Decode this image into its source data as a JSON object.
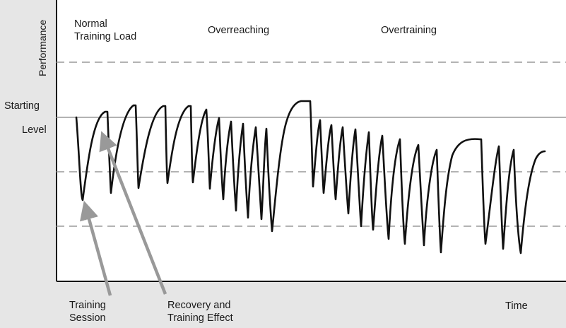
{
  "labels": {
    "y_axis": "Performance",
    "starting": "Starting",
    "level": "Level",
    "phase_normal_line1": "Normal",
    "phase_normal_line2": "Training Load",
    "phase_overreaching": "Overreaching",
    "phase_overtraining": "Overtraining",
    "training_session_line1": "Training",
    "training_session_line2": "Session",
    "recovery_line1": "Recovery and",
    "recovery_line2": "Training Effect",
    "x_axis": "Time"
  },
  "colors": {
    "background": "#e6e6e6",
    "plot": "#ffffff",
    "curve": "#111111",
    "reference_line": "#b3b3b3",
    "dashed_line": "#b3b3b3",
    "arrow": "#999999"
  }
}
